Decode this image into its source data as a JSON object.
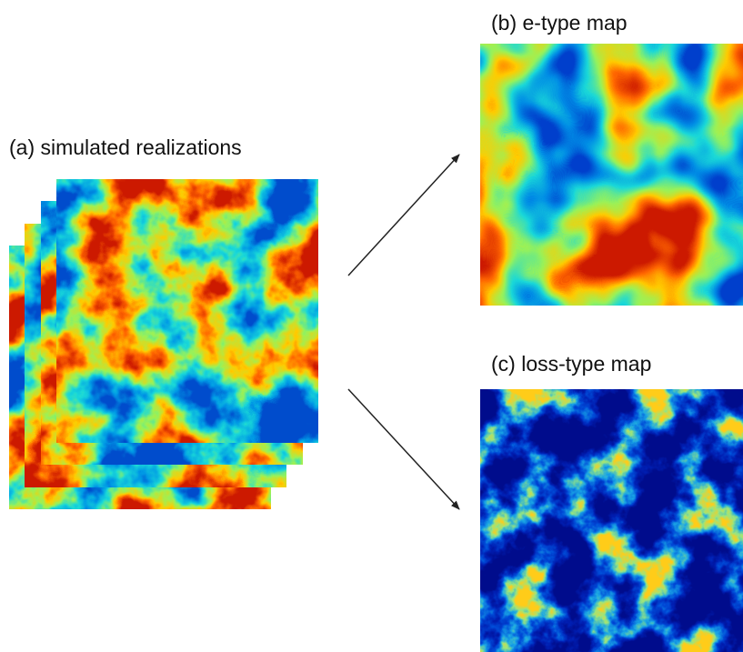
{
  "panels": [
    {
      "label": "(a) simulated realizations"
    },
    {
      "label": "(b) e-type map"
    },
    {
      "label": "(c) loss-type map"
    }
  ]
}
